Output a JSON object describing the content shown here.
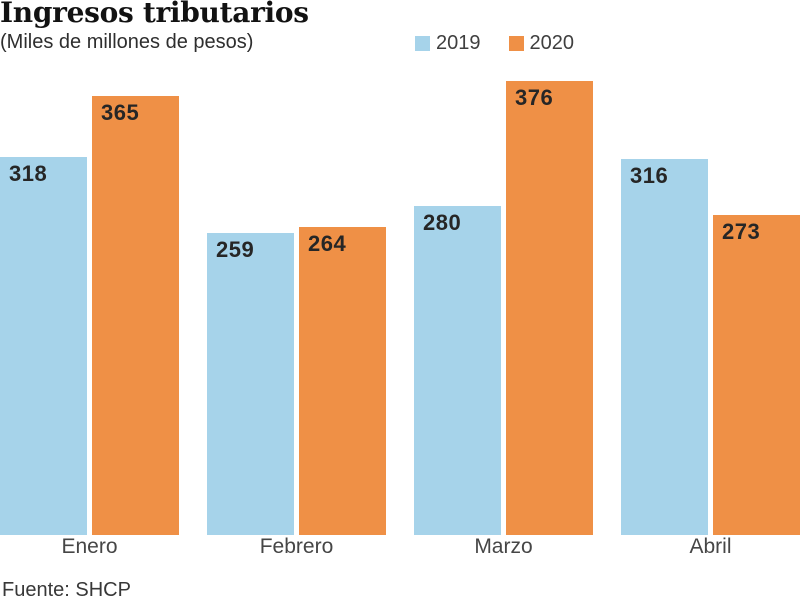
{
  "header": {
    "title": "Ingresos tributarios",
    "subtitle": "(Miles de millones de pesos)"
  },
  "legend": [
    {
      "label": "2019",
      "color": "#A6D3EA"
    },
    {
      "label": "2020",
      "color": "#EF9046"
    }
  ],
  "footer": {
    "source": "Fuente: SHCP"
  },
  "chart_data": {
    "type": "bar",
    "title": "Ingresos tributarios",
    "subtitle": "(Miles de millones de pesos)",
    "categories": [
      "Enero",
      "Febrero",
      "Marzo",
      "Abril"
    ],
    "series": [
      {
        "name": "2019",
        "color": "#A6D3EA",
        "values": [
          318,
          259,
          280,
          316
        ]
      },
      {
        "name": "2020",
        "color": "#EF9046",
        "values": [
          365,
          264,
          376,
          273
        ]
      }
    ],
    "ylabel": "Miles de millones de pesos",
    "ylim": [
      27,
      415.5
    ],
    "grid": false,
    "value_labels": true,
    "legend_position": "top-center",
    "source": "Fuente: SHCP"
  }
}
